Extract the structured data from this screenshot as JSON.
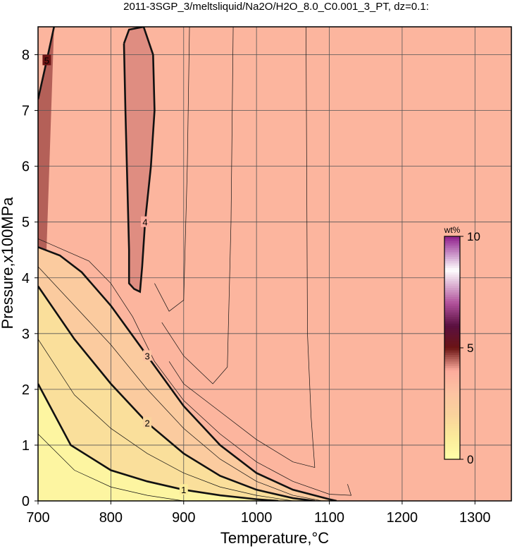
{
  "chart_data": {
    "type": "contour",
    "title": "2011-3SGP_3/meltsliquid/Na2O/H2O_8.0_C0.001_3_PT, dz=0.1:",
    "x_label": "Temperature,°C",
    "y_label": "Pressure,x100MPa",
    "xlim": [
      700,
      1350
    ],
    "ylim": [
      0,
      8.5
    ],
    "xticks": [
      700,
      800,
      900,
      1000,
      1100,
      1200,
      1300
    ],
    "yticks": [
      0,
      1,
      2,
      3,
      4,
      5,
      6,
      7,
      8
    ],
    "grid": true,
    "background_level": 3.6,
    "colorbar": {
      "label": "wt%",
      "lim": [
        0,
        10
      ],
      "ticks": [
        0,
        5,
        10
      ],
      "colormap": [
        [
          0,
          "#ffffa8"
        ],
        [
          1,
          "#fbeb9a"
        ],
        [
          2,
          "#f9d39c"
        ],
        [
          3,
          "#fcc3a2"
        ],
        [
          4,
          "#fcab9c"
        ],
        [
          5,
          "#6b1414"
        ],
        [
          6,
          "#5a1040"
        ],
        [
          7,
          "#b0509a"
        ],
        [
          8.5,
          "#ffffff"
        ],
        [
          10,
          "#901e8c"
        ]
      ]
    },
    "contours": [
      {
        "level": 3,
        "T": [
          700,
          730,
          760,
          800,
          850,
          900,
          950,
          1000,
          1050,
          1100,
          1110
        ],
        "P": [
          4.55,
          4.4,
          4.1,
          3.5,
          2.6,
          1.7,
          1.0,
          0.5,
          0.2,
          0.03,
          0
        ]
      },
      {
        "level": 2,
        "T": [
          700,
          750,
          800,
          850,
          900,
          950,
          1000,
          1050,
          1080
        ],
        "P": [
          3.85,
          2.9,
          2.1,
          1.4,
          0.85,
          0.45,
          0.2,
          0.05,
          0
        ]
      },
      {
        "level": 1,
        "T": [
          700,
          745,
          800,
          850,
          900,
          950,
          1000,
          1030
        ],
        "P": [
          2.1,
          1.0,
          0.55,
          0.35,
          0.2,
          0.1,
          0.03,
          0
        ]
      },
      {
        "level": 4,
        "T": [
          818,
          825,
          845,
          858,
          860,
          855,
          847,
          843,
          840,
          832,
          825,
          825,
          822,
          820,
          818
        ],
        "P": [
          8.2,
          8.45,
          8.5,
          8.0,
          7.0,
          6.0,
          5.0,
          4.2,
          3.75,
          3.8,
          3.9,
          4.5,
          6.0,
          7.0,
          8.2
        ]
      },
      {
        "level": 5,
        "T": [
          700,
          712,
          722
        ],
        "P": [
          7.2,
          7.9,
          8.5
        ]
      }
    ],
    "thin_contours": [
      {
        "level": 3.5,
        "T": [
          700,
          770,
          800,
          830,
          860,
          900,
          950,
          1000,
          1050,
          1100,
          1130,
          1125
        ],
        "P": [
          4.7,
          4.3,
          3.9,
          3.3,
          2.5,
          1.8,
          1.2,
          0.7,
          0.35,
          0.12,
          0.1,
          0.3
        ]
      },
      {
        "level": 3.7,
        "T": [
          880,
          900,
          950,
          1000,
          1050,
          1080,
          1075,
          1070,
          1068
        ],
        "P": [
          2.5,
          2.1,
          1.6,
          1.1,
          0.7,
          0.6,
          1.5,
          3.0,
          8.5
        ]
      },
      {
        "level": 3.8,
        "T": [
          870,
          900,
          940,
          960,
          965,
          968
        ],
        "P": [
          3.2,
          2.6,
          2.1,
          2.4,
          5.0,
          8.5
        ]
      },
      {
        "level": 3.9,
        "T": [
          860,
          880,
          900,
          905,
          908
        ],
        "P": [
          3.9,
          3.4,
          3.6,
          6.0,
          8.5
        ]
      },
      {
        "level": 1.5,
        "T": [
          700,
          750,
          800,
          850,
          900,
          950,
          1000,
          1050
        ],
        "P": [
          2.9,
          1.9,
          1.3,
          0.85,
          0.5,
          0.25,
          0.1,
          0
        ]
      },
      {
        "level": 0.5,
        "T": [
          700,
          750,
          800,
          850,
          900
        ],
        "P": [
          1.2,
          0.55,
          0.25,
          0.1,
          0
        ]
      },
      {
        "level": 2.5,
        "T": [
          700,
          750,
          800,
          850,
          900,
          950,
          1000,
          1050,
          1090
        ],
        "P": [
          4.2,
          3.5,
          2.8,
          2.0,
          1.3,
          0.75,
          0.35,
          0.1,
          0
        ]
      }
    ]
  }
}
